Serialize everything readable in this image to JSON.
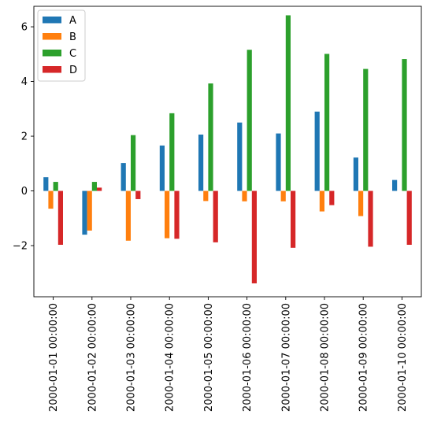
{
  "chart_data": {
    "type": "bar",
    "categories": [
      "2000-01-01 00:00:00",
      "2000-01-02 00:00:00",
      "2000-01-03 00:00:00",
      "2000-01-04 00:00:00",
      "2000-01-05 00:00:00",
      "2000-01-06 00:00:00",
      "2000-01-07 00:00:00",
      "2000-01-08 00:00:00",
      "2000-01-09 00:00:00",
      "2000-01-10 00:00:00"
    ],
    "series": [
      {
        "name": "A",
        "color": "#1f77b4",
        "values": [
          0.5,
          -1.6,
          1.02,
          1.66,
          2.06,
          2.5,
          2.1,
          2.9,
          1.22,
          0.4
        ]
      },
      {
        "name": "B",
        "color": "#ff7f0e",
        "values": [
          -0.65,
          -1.45,
          -1.82,
          -1.73,
          -0.37,
          -0.38,
          -0.38,
          -0.75,
          -0.92,
          0.0
        ]
      },
      {
        "name": "C",
        "color": "#2ca02c",
        "values": [
          0.33,
          0.33,
          2.04,
          2.84,
          3.93,
          5.16,
          6.42,
          5.01,
          4.46,
          4.82
        ]
      },
      {
        "name": "D",
        "color": "#d62728",
        "values": [
          -1.97,
          0.12,
          -0.3,
          -1.75,
          -1.88,
          -3.38,
          -2.08,
          -0.52,
          -2.04,
          -1.97
        ]
      }
    ],
    "yticks": [
      -2,
      0,
      2,
      4,
      6
    ],
    "ytick_labels": [
      "−2",
      "0",
      "2",
      "4",
      "6"
    ],
    "ylim": [
      -3.87,
      6.75
    ],
    "xlabel": "",
    "ylabel": "",
    "title": "",
    "legend_position": "upper-left",
    "grid": false
  }
}
